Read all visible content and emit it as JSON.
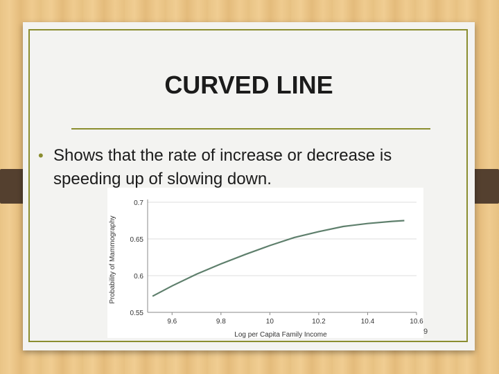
{
  "slide": {
    "title": "CURVED LINE",
    "bullet": "Shows that the rate of increase or decrease is speeding up of slowing down.",
    "page_number": "9"
  },
  "colors": {
    "accent": "#8a8d2f",
    "line": "#5e7f6c",
    "background": "#f3f3f1"
  },
  "chart_data": {
    "type": "line",
    "title": "",
    "xlabel": "Log per Capita Family Income",
    "ylabel": "Probability of Mammography",
    "xlim": [
      9.5,
      10.6
    ],
    "ylim": [
      0.55,
      0.7
    ],
    "xticks": [
      9.6,
      9.8,
      10.0,
      10.2,
      10.4,
      10.6
    ],
    "xtick_labels": [
      "9.6",
      "9.8",
      "10",
      "10.2",
      "10.4",
      "10.6"
    ],
    "yticks": [
      0.55,
      0.6,
      0.65,
      0.7
    ],
    "ytick_labels": [
      "0.55",
      "0.6",
      "0.65",
      "0.7"
    ],
    "grid": true,
    "series": [
      {
        "x": [
          9.52,
          9.6,
          9.7,
          9.8,
          9.9,
          10.0,
          10.1,
          10.2,
          10.3,
          10.4,
          10.5,
          10.55
        ],
        "values": [
          0.572,
          0.586,
          0.602,
          0.616,
          0.629,
          0.641,
          0.652,
          0.66,
          0.667,
          0.671,
          0.674,
          0.675
        ]
      }
    ]
  }
}
